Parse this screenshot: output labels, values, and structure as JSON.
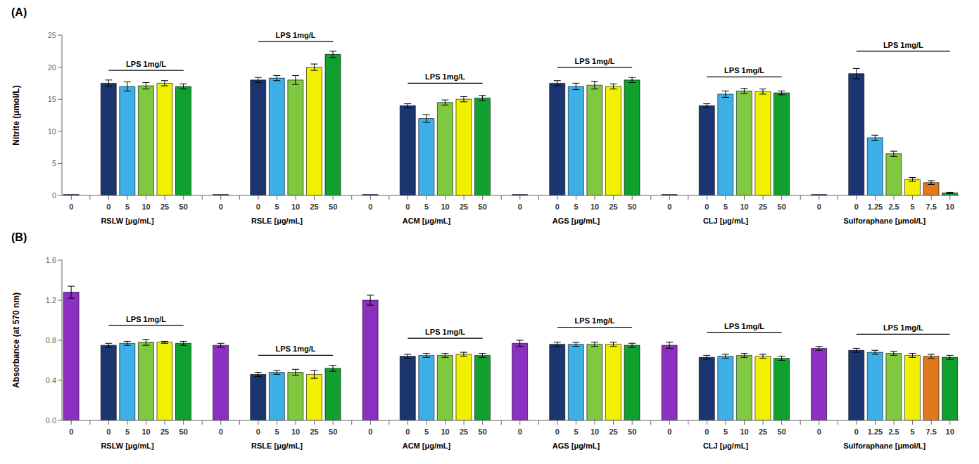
{
  "chart_data": [
    {
      "type": "bar",
      "title": "(A)",
      "y_label": "Nitrite (μmol/L)",
      "ylim": [
        0,
        25
      ],
      "yticks": [
        0,
        5,
        10,
        15,
        20,
        25
      ],
      "grid": false,
      "groups": [
        {
          "name": "RSLW [μg/mL]",
          "categories": [
            "0",
            "0",
            "5",
            "10",
            "25",
            "50"
          ],
          "values": [
            0.15,
            17.5,
            17.0,
            17.1,
            17.5,
            17.0
          ],
          "errors": [
            0.0,
            0.5,
            0.7,
            0.5,
            0.4,
            0.4
          ],
          "colors": [
            "#1a1a6e",
            "#1a3570",
            "#3db0e8",
            "#80c840",
            "#f0f000",
            "#10a030"
          ],
          "annotation": {
            "text": "LPS 1mg/L",
            "y": 19.5
          }
        },
        {
          "name": "RSLE [μg/mL]",
          "categories": [
            "0",
            "0",
            "5",
            "10",
            "25",
            "50"
          ],
          "values": [
            0.15,
            18.0,
            18.3,
            18.0,
            20.0,
            22.0
          ],
          "errors": [
            0.0,
            0.4,
            0.4,
            0.7,
            0.5,
            0.5
          ],
          "colors": [
            "#1a1a6e",
            "#1a3570",
            "#3db0e8",
            "#80c840",
            "#f0f000",
            "#10a030"
          ],
          "annotation": {
            "text": "LPS 1mg/L",
            "y": 24.0
          }
        },
        {
          "name": "ACM [μg/mL]",
          "categories": [
            "0",
            "0",
            "5",
            "10",
            "25",
            "50"
          ],
          "values": [
            0.15,
            14.0,
            12.0,
            14.5,
            15.0,
            15.2
          ],
          "errors": [
            0.0,
            0.3,
            0.6,
            0.4,
            0.4,
            0.4
          ],
          "colors": [
            "#1a1a6e",
            "#1a3570",
            "#3db0e8",
            "#80c840",
            "#f0f000",
            "#10a030"
          ],
          "annotation": {
            "text": "LPS 1mg/L",
            "y": 17.5
          }
        },
        {
          "name": "AGS [μg/mL]",
          "categories": [
            "0",
            "0",
            "5",
            "10",
            "25",
            "50"
          ],
          "values": [
            0.15,
            17.5,
            17.0,
            17.2,
            17.0,
            18.0
          ],
          "errors": [
            0.0,
            0.4,
            0.5,
            0.6,
            0.4,
            0.4
          ],
          "colors": [
            "#1a1a6e",
            "#1a3570",
            "#3db0e8",
            "#80c840",
            "#f0f000",
            "#10a030"
          ],
          "annotation": {
            "text": "LPS 1mg/L",
            "y": 20.0
          }
        },
        {
          "name": "CLJ [μg/mL]",
          "categories": [
            "0",
            "0",
            "5",
            "10",
            "25",
            "50"
          ],
          "values": [
            0.15,
            14.0,
            15.8,
            16.3,
            16.2,
            16.0
          ],
          "errors": [
            0.0,
            0.3,
            0.5,
            0.4,
            0.4,
            0.3
          ],
          "colors": [
            "#1a1a6e",
            "#1a3570",
            "#3db0e8",
            "#80c840",
            "#f0f000",
            "#10a030"
          ],
          "annotation": {
            "text": "LPS 1mg/L",
            "y": 18.5
          }
        },
        {
          "name": "Sulforaphane [μmol/L]",
          "categories": [
            "0",
            "0",
            "1.25",
            "2.5",
            "5",
            "7.5",
            "10"
          ],
          "values": [
            0.15,
            19.0,
            9.0,
            6.5,
            2.5,
            2.0,
            0.4
          ],
          "errors": [
            0.0,
            0.8,
            0.4,
            0.4,
            0.3,
            0.3,
            0.1
          ],
          "colors": [
            "#1a1a6e",
            "#1a3570",
            "#3db0e8",
            "#80c840",
            "#f0f000",
            "#e07820",
            "#10a030"
          ],
          "annotation": {
            "text": "LPS 1mg/L",
            "y": 22.5
          }
        }
      ]
    },
    {
      "type": "bar",
      "title": "(B)",
      "y_label": "Absorbance (at 570 nm)",
      "ylim": [
        0,
        1.6
      ],
      "yticks": [
        {
          "value": 0,
          "label": "0.0"
        },
        0.4,
        0.8,
        1.2,
        1.6
      ],
      "grid": false,
      "groups": [
        {
          "name": "RSLW [μg/mL]",
          "categories": [
            "0",
            "0",
            "5",
            "10",
            "25",
            "50"
          ],
          "values": [
            1.28,
            0.75,
            0.77,
            0.78,
            0.78,
            0.77
          ],
          "errors": [
            0.06,
            0.02,
            0.02,
            0.03,
            0.01,
            0.02
          ],
          "colors": [
            "#8b30c0",
            "#1a3570",
            "#3db0e8",
            "#80c840",
            "#f0f000",
            "#10a030"
          ],
          "annotation": {
            "text": "LPS 1mg/L",
            "y": 0.95
          }
        },
        {
          "name": "RSLE [μg/mL]",
          "categories": [
            "0",
            "0",
            "5",
            "10",
            "25",
            "50"
          ],
          "values": [
            0.75,
            0.46,
            0.48,
            0.48,
            0.46,
            0.52
          ],
          "errors": [
            0.02,
            0.02,
            0.02,
            0.03,
            0.04,
            0.03
          ],
          "colors": [
            "#8b30c0",
            "#1a3570",
            "#3db0e8",
            "#80c840",
            "#f0f000",
            "#10a030"
          ],
          "annotation": {
            "text": "LPS 1mg/L",
            "y": 0.65
          }
        },
        {
          "name": "ACM [μg/mL]",
          "categories": [
            "0",
            "0",
            "5",
            "10",
            "25",
            "50"
          ],
          "values": [
            1.2,
            0.64,
            0.65,
            0.65,
            0.66,
            0.65
          ],
          "errors": [
            0.05,
            0.02,
            0.02,
            0.02,
            0.02,
            0.02
          ],
          "colors": [
            "#8b30c0",
            "#1a3570",
            "#3db0e8",
            "#80c840",
            "#f0f000",
            "#10a030"
          ],
          "annotation": {
            "text": "LPS 1mg/L",
            "y": 0.82
          }
        },
        {
          "name": "AGS [μg/mL]",
          "categories": [
            "0",
            "0",
            "5",
            "10",
            "25",
            "50"
          ],
          "values": [
            0.77,
            0.76,
            0.76,
            0.76,
            0.76,
            0.75
          ],
          "errors": [
            0.03,
            0.02,
            0.02,
            0.02,
            0.02,
            0.02
          ],
          "colors": [
            "#8b30c0",
            "#1a3570",
            "#3db0e8",
            "#80c840",
            "#f0f000",
            "#10a030"
          ],
          "annotation": {
            "text": "LPS 1mg/L",
            "y": 0.93
          }
        },
        {
          "name": "CLJ [μg/mL]",
          "categories": [
            "0",
            "0",
            "5",
            "10",
            "25",
            "50"
          ],
          "values": [
            0.75,
            0.63,
            0.64,
            0.65,
            0.64,
            0.62
          ],
          "errors": [
            0.03,
            0.02,
            0.02,
            0.02,
            0.02,
            0.02
          ],
          "colors": [
            "#8b30c0",
            "#1a3570",
            "#3db0e8",
            "#80c840",
            "#f0f000",
            "#10a030"
          ],
          "annotation": {
            "text": "LPS 1mg/L",
            "y": 0.88
          }
        },
        {
          "name": "Sulforaphane [μmol/L]",
          "categories": [
            "0",
            "0",
            "1.25",
            "2.5",
            "5",
            "7.5",
            "10"
          ],
          "values": [
            0.72,
            0.7,
            0.68,
            0.67,
            0.65,
            0.64,
            0.63
          ],
          "errors": [
            0.02,
            0.02,
            0.02,
            0.02,
            0.02,
            0.02,
            0.02
          ],
          "colors": [
            "#8b30c0",
            "#1a3570",
            "#3db0e8",
            "#80c840",
            "#f0f000",
            "#e07820",
            "#10a030"
          ],
          "annotation": {
            "text": "LPS 1mg/L",
            "y": 0.86
          }
        }
      ]
    }
  ]
}
